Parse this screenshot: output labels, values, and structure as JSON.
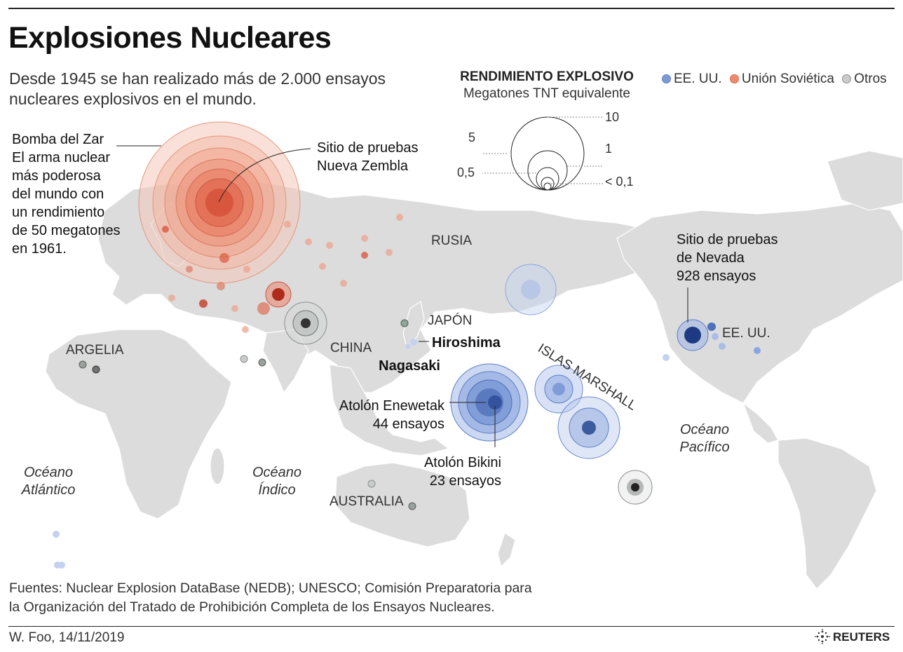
{
  "title": "Explosiones Nucleares",
  "subtitle": "Desde 1945 se han realizado más de 2.000 ensayos nucleares explosivos en el mundo.",
  "legend": {
    "title": "RENDIMIENTO EXPLOSIVO",
    "subtitle": "Megatones TNT equivalente",
    "scale_labels": [
      "10",
      "5",
      "1",
      "0,5",
      "< 0,1"
    ],
    "categories": [
      {
        "label": "EE. UU.",
        "color": "#5b7fc7"
      },
      {
        "label": "Unión Soviética",
        "color": "#e0664a"
      },
      {
        "label": "Otros",
        "color": "#8a8f8c"
      }
    ]
  },
  "annotations": {
    "tsar_bomba": [
      "Bomba del Zar",
      "El arma nuclear",
      "más poderosa",
      "del mundo con",
      "un rendimiento",
      "de 50 megatones",
      "en 1961."
    ],
    "novaya_zemlya": [
      "Sitio de pruebas",
      "Nueva Zembla"
    ],
    "nevada": [
      "Sitio de pruebas",
      "de Nevada",
      "928 ensayos"
    ],
    "enewetak": [
      "Atolón Enewetak",
      "44 ensayos"
    ],
    "bikini": [
      "Atolón Bikini",
      "23 ensayos"
    ],
    "hiroshima": "Hiroshima",
    "nagasaki": "Nagasaki"
  },
  "places": {
    "russia": "RUSIA",
    "japan": "JAPÓN",
    "china": "CHINA",
    "algeria": "ARGELIA",
    "usa": "EE. UU.",
    "australia": "AUSTRALIA",
    "marshall": "ISLAS MARSHALL",
    "atlantic": [
      "Océano",
      "Atlántico"
    ],
    "indian": [
      "Océano",
      "Índico"
    ],
    "pacific": [
      "Océano",
      "Pacífico"
    ]
  },
  "sources": [
    "Fuentes: Nuclear Explosion DataBase (NEDB); UNESCO; Comisión Preparatoria para",
    "la Organización del Tratado de Prohibición Completa de los Ensayos Nucleares."
  ],
  "credit": "W. Foo, 14/11/2019",
  "agency": "REUTERS"
}
